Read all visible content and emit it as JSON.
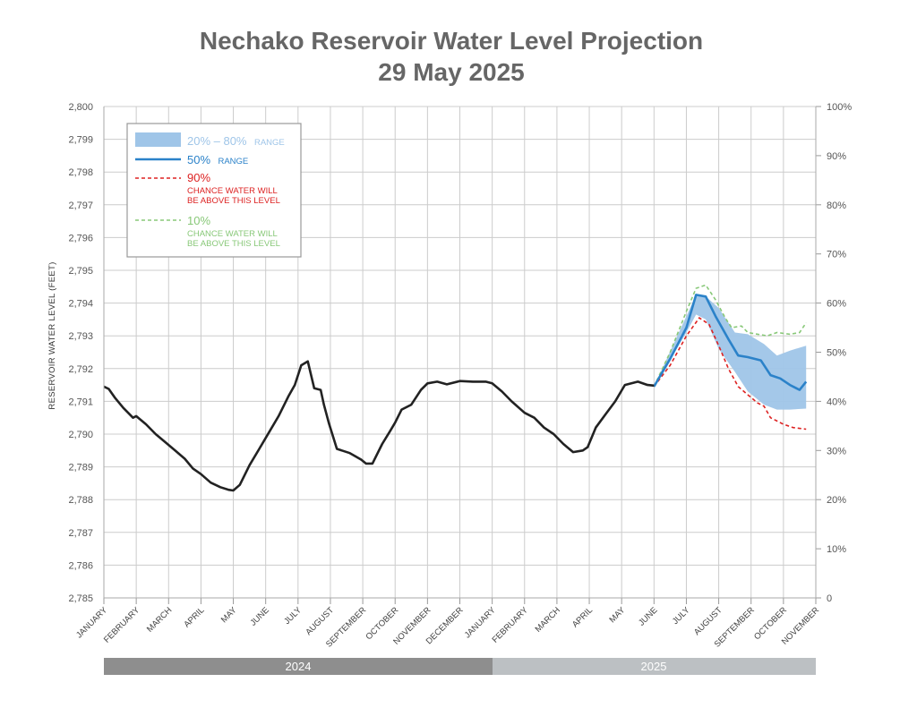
{
  "chart_data": {
    "type": "area",
    "title": "Nechako Reservoir Water Level Projection",
    "subtitle": "29 May 2025",
    "ylabel": "RESERVOIR WATER LEVEL (FEET)",
    "ylim": [
      2785,
      2800
    ],
    "yticks": [
      "2,785",
      "2,786",
      "2,787",
      "2,788",
      "2,789",
      "2,790",
      "2,791",
      "2,792",
      "2,793",
      "2,794",
      "2,795",
      "2,796",
      "2,797",
      "2,798",
      "2,799",
      "2,800"
    ],
    "y2ticks": [
      "0",
      "10%",
      "20%",
      "30%",
      "40%",
      "50%",
      "60%",
      "70%",
      "80%",
      "90%",
      "100%"
    ],
    "xticks": [
      "JANUARY",
      "FEBRUARY",
      "MARCH",
      "APRIL",
      "MAY",
      "JUNE",
      "JULY",
      "AUGUST",
      "SEPTEMBER",
      "OCTOBER",
      "NOVEMBER",
      "DECEMBER",
      "JANUARY",
      "FEBRUARY",
      "MARCH",
      "APRIL",
      "MAY",
      "JUNE",
      "JULY",
      "AUGUST",
      "SEPTEMBER",
      "OCTOBER",
      "NOVEMBER"
    ],
    "years": [
      "2024",
      "2025"
    ],
    "grid": true,
    "legend_position": "top-left",
    "colors": {
      "historical": "#222222",
      "median": "#2b82c9",
      "band": "#9fc5e8",
      "p90": "#dd2222",
      "p10": "#88c878",
      "grid": "#cccccc",
      "year2024": "#8e8e8e",
      "year2025": "#bcc0c3"
    },
    "legend": {
      "band": {
        "main": "20% – 80%",
        "small": "RANGE"
      },
      "median": {
        "main": "50%",
        "small": "RANGE"
      },
      "p90": {
        "main": "90%",
        "line1": "CHANCE WATER WILL",
        "line2": "BE ABOVE THIS LEVEL"
      },
      "p10": {
        "main": "10%",
        "line1": "CHANCE WATER WILL",
        "line2": "BE ABOVE THIS LEVEL"
      }
    },
    "series": [
      {
        "name": "historical",
        "x": [
          0,
          0.15,
          0.35,
          0.6,
          0.9,
          1.0,
          1.3,
          1.6,
          1.9,
          2.2,
          2.5,
          2.75,
          3.0,
          3.3,
          3.6,
          3.85,
          4.0,
          4.2,
          4.5,
          4.8,
          5.1,
          5.4,
          5.7,
          5.9,
          6.1,
          6.3,
          6.5,
          6.7,
          6.8,
          6.95,
          7.2,
          7.6,
          7.95,
          8.1,
          8.3,
          8.6,
          8.85,
          9.0,
          9.2,
          9.5,
          9.8,
          10.0,
          10.3,
          10.6,
          11.0,
          11.4,
          11.8,
          12.0,
          12.3,
          12.6,
          13.0,
          13.3,
          13.6,
          13.9,
          14.2,
          14.5,
          14.8,
          14.95,
          15.2,
          15.5,
          15.8,
          16.1,
          16.5,
          16.8,
          17.0
        ],
        "y": [
          2791.45,
          2791.38,
          2791.1,
          2790.8,
          2790.5,
          2790.55,
          2790.3,
          2790.0,
          2789.75,
          2789.5,
          2789.25,
          2788.95,
          2788.78,
          2788.52,
          2788.38,
          2788.3,
          2788.28,
          2788.45,
          2789.05,
          2789.55,
          2790.05,
          2790.55,
          2791.15,
          2791.5,
          2792.1,
          2792.22,
          2791.4,
          2791.35,
          2790.9,
          2790.35,
          2789.55,
          2789.42,
          2789.22,
          2789.1,
          2789.1,
          2789.7,
          2790.1,
          2790.35,
          2790.75,
          2790.9,
          2791.35,
          2791.55,
          2791.6,
          2791.52,
          2791.62,
          2791.6,
          2791.6,
          2791.55,
          2791.3,
          2791.0,
          2790.65,
          2790.5,
          2790.2,
          2790.0,
          2789.7,
          2789.45,
          2789.5,
          2789.6,
          2790.2,
          2790.6,
          2791.0,
          2791.5,
          2791.6,
          2791.5,
          2791.48
        ]
      },
      {
        "name": "20% – 80%",
        "x": [
          17.0,
          18.0,
          18.3,
          18.6,
          19.0,
          19.5,
          19.9,
          20.4,
          20.8,
          21.2,
          21.7
        ],
        "low": [
          2791.45,
          2793.1,
          2793.65,
          2793.5,
          2792.6,
          2791.9,
          2791.3,
          2790.9,
          2790.75,
          2790.75,
          2790.78
        ],
        "high": [
          2791.45,
          2793.6,
          2794.25,
          2794.2,
          2793.85,
          2793.1,
          2793.05,
          2792.75,
          2792.4,
          2792.55,
          2792.7
        ]
      },
      {
        "name": "50%",
        "x": [
          17.0,
          17.5,
          18.0,
          18.3,
          18.6,
          18.9,
          19.3,
          19.6,
          19.9,
          20.3,
          20.6,
          20.9,
          21.2,
          21.5,
          21.7
        ],
        "y": [
          2791.45,
          2792.3,
          2793.25,
          2794.25,
          2794.2,
          2793.6,
          2792.9,
          2792.4,
          2792.35,
          2792.25,
          2791.8,
          2791.7,
          2791.5,
          2791.35,
          2791.6
        ]
      },
      {
        "name": "90%",
        "x": [
          17.0,
          17.5,
          18.0,
          18.4,
          18.7,
          19.0,
          19.3,
          19.6,
          19.9,
          20.2,
          20.4,
          20.6,
          21.0,
          21.3,
          21.7
        ],
        "y": [
          2791.45,
          2792.1,
          2793.0,
          2793.55,
          2793.35,
          2792.7,
          2792.0,
          2791.45,
          2791.2,
          2790.95,
          2790.85,
          2790.5,
          2790.3,
          2790.2,
          2790.15
        ]
      },
      {
        "name": "10%",
        "x": [
          17.0,
          17.5,
          18.0,
          18.3,
          18.6,
          18.9,
          19.2,
          19.4,
          19.7,
          19.9,
          20.2,
          20.5,
          20.8,
          21.2,
          21.5,
          21.7
        ],
        "y": [
          2791.45,
          2792.5,
          2793.75,
          2794.45,
          2794.55,
          2794.1,
          2793.55,
          2793.25,
          2793.3,
          2793.1,
          2793.05,
          2793.0,
          2793.1,
          2793.05,
          2793.1,
          2793.4
        ]
      }
    ]
  }
}
